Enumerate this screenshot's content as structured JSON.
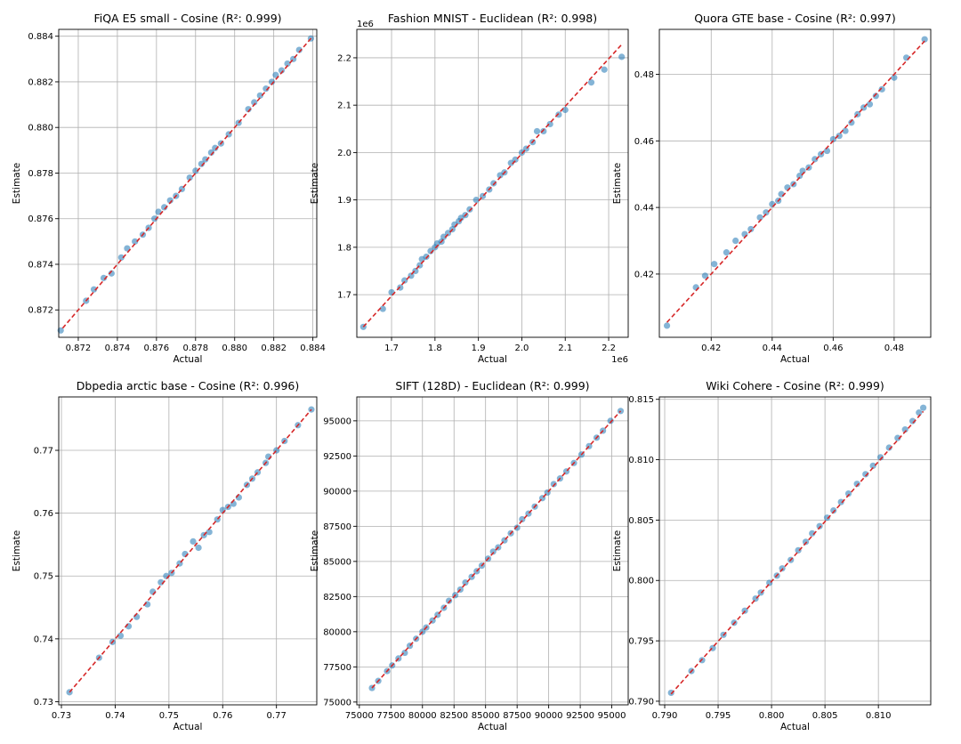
{
  "chart_data": [
    {
      "type": "scatter",
      "title": "FiQA E5 small - Cosine (R²: 0.999)",
      "xlabel": "Actual",
      "ylabel": "Estimate",
      "xlim": [
        0.871,
        0.8842
      ],
      "ylim": [
        0.8708,
        0.8843
      ],
      "xticks": [
        0.872,
        0.874,
        0.876,
        0.878,
        0.88,
        0.882,
        0.884
      ],
      "yticks": [
        0.872,
        0.874,
        0.876,
        0.878,
        0.88,
        0.882,
        0.884
      ],
      "tick_decimals": 3,
      "x_multiplier": "",
      "y_multiplier": "",
      "grid": true,
      "fit_line": [
        [
          0.8712,
          0.8712
        ],
        [
          0.884,
          0.884
        ]
      ],
      "points": [
        [
          0.8711,
          0.8711
        ],
        [
          0.8724,
          0.8724
        ],
        [
          0.8728,
          0.8729
        ],
        [
          0.8733,
          0.8734
        ],
        [
          0.8737,
          0.8736
        ],
        [
          0.8742,
          0.8743
        ],
        [
          0.8745,
          0.8747
        ],
        [
          0.8749,
          0.875
        ],
        [
          0.8753,
          0.8753
        ],
        [
          0.8756,
          0.8756
        ],
        [
          0.8759,
          0.876
        ],
        [
          0.8761,
          0.8763
        ],
        [
          0.8764,
          0.8765
        ],
        [
          0.8767,
          0.8768
        ],
        [
          0.877,
          0.877
        ],
        [
          0.8773,
          0.8773
        ],
        [
          0.8777,
          0.8778
        ],
        [
          0.878,
          0.8781
        ],
        [
          0.8783,
          0.8784
        ],
        [
          0.8785,
          0.8786
        ],
        [
          0.8788,
          0.8789
        ],
        [
          0.879,
          0.8791
        ],
        [
          0.8793,
          0.8793
        ],
        [
          0.8797,
          0.8797
        ],
        [
          0.8802,
          0.8802
        ],
        [
          0.8807,
          0.8808
        ],
        [
          0.881,
          0.8811
        ],
        [
          0.8813,
          0.8814
        ],
        [
          0.8816,
          0.8817
        ],
        [
          0.8819,
          0.882
        ],
        [
          0.8821,
          0.8823
        ],
        [
          0.8824,
          0.8825
        ],
        [
          0.8827,
          0.8828
        ],
        [
          0.883,
          0.883
        ],
        [
          0.8833,
          0.8834
        ],
        [
          0.8839,
          0.8839
        ]
      ]
    },
    {
      "type": "scatter",
      "title": "Fashion MNIST - Euclidean (R²: 0.998)",
      "xlabel": "Actual",
      "ylabel": "Estimate",
      "xlim": [
        1620000,
        2245000
      ],
      "ylim": [
        1610000,
        2260000
      ],
      "xticks": [
        1700000,
        1800000,
        1900000,
        2000000,
        2100000,
        2200000
      ],
      "yticks": [
        1700000,
        1800000,
        1900000,
        2000000,
        2100000,
        2200000
      ],
      "xtick_labels": [
        "1.7",
        "1.8",
        "1.9",
        "2.0",
        "2.1",
        "2.2"
      ],
      "ytick_labels": [
        "1.7",
        "1.8",
        "1.9",
        "2.0",
        "2.1",
        "2.2"
      ],
      "x_multiplier": "1e6",
      "y_multiplier": "1e6",
      "grid": true,
      "fit_line": [
        [
          1635000,
          1632000
        ],
        [
          2230000,
          2228000
        ]
      ],
      "points": [
        [
          1635000,
          1632000
        ],
        [
          1680000,
          1670000
        ],
        [
          1700000,
          1705000
        ],
        [
          1720000,
          1715000
        ],
        [
          1730000,
          1730000
        ],
        [
          1745000,
          1740000
        ],
        [
          1755000,
          1750000
        ],
        [
          1765000,
          1762000
        ],
        [
          1770000,
          1775000
        ],
        [
          1780000,
          1780000
        ],
        [
          1790000,
          1792000
        ],
        [
          1800000,
          1800000
        ],
        [
          1805000,
          1808000
        ],
        [
          1815000,
          1812000
        ],
        [
          1820000,
          1822000
        ],
        [
          1830000,
          1830000
        ],
        [
          1840000,
          1838000
        ],
        [
          1845000,
          1848000
        ],
        [
          1855000,
          1855000
        ],
        [
          1860000,
          1862000
        ],
        [
          1870000,
          1868000
        ],
        [
          1880000,
          1880000
        ],
        [
          1895000,
          1900000
        ],
        [
          1910000,
          1908000
        ],
        [
          1925000,
          1922000
        ],
        [
          1935000,
          1935000
        ],
        [
          1950000,
          1952000
        ],
        [
          1960000,
          1958000
        ],
        [
          1975000,
          1978000
        ],
        [
          1985000,
          1985000
        ],
        [
          2000000,
          2000000
        ],
        [
          2010000,
          2008000
        ],
        [
          2025000,
          2022000
        ],
        [
          2035000,
          2045000
        ],
        [
          2050000,
          2045000
        ],
        [
          2065000,
          2060000
        ],
        [
          2085000,
          2080000
        ],
        [
          2100000,
          2090000
        ],
        [
          2160000,
          2148000
        ],
        [
          2190000,
          2175000
        ],
        [
          2230000,
          2202000
        ]
      ]
    },
    {
      "type": "scatter",
      "title": "Quora GTE base - Cosine (R²: 0.997)",
      "xlabel": "Actual",
      "ylabel": "Estimate",
      "xlim": [
        0.403,
        0.492
      ],
      "ylim": [
        0.401,
        0.4935
      ],
      "xticks": [
        0.42,
        0.44,
        0.46,
        0.48
      ],
      "yticks": [
        0.42,
        0.44,
        0.46,
        0.48
      ],
      "tick_decimals": 2,
      "x_multiplier": "",
      "y_multiplier": "",
      "grid": true,
      "fit_line": [
        [
          0.4055,
          0.4055
        ],
        [
          0.49,
          0.49
        ]
      ],
      "points": [
        [
          0.4055,
          0.4045
        ],
        [
          0.415,
          0.416
        ],
        [
          0.418,
          0.4195
        ],
        [
          0.421,
          0.423
        ],
        [
          0.425,
          0.4265
        ],
        [
          0.428,
          0.43
        ],
        [
          0.431,
          0.432
        ],
        [
          0.433,
          0.4335
        ],
        [
          0.436,
          0.437
        ],
        [
          0.438,
          0.4385
        ],
        [
          0.44,
          0.441
        ],
        [
          0.442,
          0.442
        ],
        [
          0.443,
          0.444
        ],
        [
          0.445,
          0.446
        ],
        [
          0.447,
          0.447
        ],
        [
          0.449,
          0.4495
        ],
        [
          0.45,
          0.451
        ],
        [
          0.452,
          0.452
        ],
        [
          0.454,
          0.4545
        ],
        [
          0.456,
          0.456
        ],
        [
          0.458,
          0.457
        ],
        [
          0.46,
          0.4605
        ],
        [
          0.462,
          0.4615
        ],
        [
          0.464,
          0.463
        ],
        [
          0.466,
          0.4655
        ],
        [
          0.468,
          0.468
        ],
        [
          0.47,
          0.47
        ],
        [
          0.472,
          0.471
        ],
        [
          0.474,
          0.4735
        ],
        [
          0.476,
          0.4755
        ],
        [
          0.48,
          0.479
        ],
        [
          0.484,
          0.485
        ],
        [
          0.49,
          0.4905
        ]
      ]
    },
    {
      "type": "scatter",
      "title": "Dbpedia arctic base - Cosine (R²: 0.996)",
      "xlabel": "Actual",
      "ylabel": "Estimate",
      "xlim": [
        0.7295,
        0.7775
      ],
      "ylim": [
        0.7295,
        0.7785
      ],
      "xticks": [
        0.73,
        0.74,
        0.75,
        0.76,
        0.77
      ],
      "yticks": [
        0.73,
        0.74,
        0.75,
        0.76,
        0.77
      ],
      "tick_decimals": 2,
      "x_multiplier": "",
      "y_multiplier": "",
      "grid": true,
      "fit_line": [
        [
          0.7315,
          0.7315
        ],
        [
          0.7765,
          0.7765
        ]
      ],
      "points": [
        [
          0.7315,
          0.7315
        ],
        [
          0.737,
          0.737
        ],
        [
          0.7395,
          0.7395
        ],
        [
          0.741,
          0.7405
        ],
        [
          0.7425,
          0.742
        ],
        [
          0.744,
          0.7435
        ],
        [
          0.746,
          0.7455
        ],
        [
          0.747,
          0.7475
        ],
        [
          0.7485,
          0.749
        ],
        [
          0.7495,
          0.75
        ],
        [
          0.7505,
          0.7505
        ],
        [
          0.752,
          0.752
        ],
        [
          0.753,
          0.7535
        ],
        [
          0.7545,
          0.7555
        ],
        [
          0.7555,
          0.7545
        ],
        [
          0.7565,
          0.7565
        ],
        [
          0.7575,
          0.757
        ],
        [
          0.759,
          0.759
        ],
        [
          0.76,
          0.7605
        ],
        [
          0.761,
          0.761
        ],
        [
          0.762,
          0.7615
        ],
        [
          0.763,
          0.7625
        ],
        [
          0.7645,
          0.7645
        ],
        [
          0.7655,
          0.7655
        ],
        [
          0.7665,
          0.7665
        ],
        [
          0.768,
          0.768
        ],
        [
          0.7685,
          0.769
        ],
        [
          0.77,
          0.77
        ],
        [
          0.7715,
          0.7715
        ],
        [
          0.774,
          0.774
        ],
        [
          0.7765,
          0.7765
        ]
      ]
    },
    {
      "type": "scatter",
      "title": "SIFT (128D) - Euclidean (R²: 0.999)",
      "xlabel": "Actual",
      "ylabel": "Estimate",
      "xlim": [
        74800,
        96300
      ],
      "ylim": [
        74800,
        96700
      ],
      "xticks": [
        75000,
        77500,
        80000,
        82500,
        85000,
        87500,
        90000,
        92500,
        95000
      ],
      "yticks": [
        75000,
        77500,
        80000,
        82500,
        85000,
        87500,
        90000,
        92500,
        95000
      ],
      "tick_decimals": 0,
      "x_multiplier": "",
      "y_multiplier": "",
      "grid": true,
      "fit_line": [
        [
          76000,
          76000
        ],
        [
          95700,
          95700
        ]
      ],
      "points": [
        [
          76000,
          76000
        ],
        [
          76500,
          76500
        ],
        [
          77200,
          77200
        ],
        [
          77600,
          77600
        ],
        [
          78100,
          78100
        ],
        [
          78600,
          78500
        ],
        [
          79000,
          79000
        ],
        [
          79500,
          79500
        ],
        [
          80000,
          80000
        ],
        [
          80300,
          80300
        ],
        [
          80800,
          80800
        ],
        [
          81200,
          81200
        ],
        [
          81700,
          81700
        ],
        [
          82100,
          82200
        ],
        [
          82600,
          82600
        ],
        [
          83000,
          83000
        ],
        [
          83400,
          83500
        ],
        [
          83900,
          83900
        ],
        [
          84300,
          84300
        ],
        [
          84700,
          84700
        ],
        [
          85200,
          85200
        ],
        [
          85600,
          85700
        ],
        [
          86000,
          86000
        ],
        [
          86500,
          86500
        ],
        [
          87000,
          87000
        ],
        [
          87500,
          87400
        ],
        [
          87900,
          88000
        ],
        [
          88400,
          88400
        ],
        [
          88900,
          88900
        ],
        [
          89500,
          89500
        ],
        [
          89900,
          89900
        ],
        [
          90400,
          90500
        ],
        [
          90900,
          90900
        ],
        [
          91400,
          91400
        ],
        [
          92000,
          92000
        ],
        [
          92600,
          92600
        ],
        [
          93200,
          93200
        ],
        [
          93800,
          93800
        ],
        [
          94300,
          94300
        ],
        [
          94900,
          95000
        ],
        [
          95700,
          95700
        ]
      ]
    },
    {
      "type": "scatter",
      "title": "Wiki Cohere - Cosine (R²: 0.999)",
      "xlabel": "Actual",
      "ylabel": "Estimate",
      "xlim": [
        0.7895,
        0.8149
      ],
      "ylim": [
        0.7897,
        0.8152
      ],
      "xticks": [
        0.79,
        0.795,
        0.8,
        0.805,
        0.81
      ],
      "yticks": [
        0.79,
        0.795,
        0.8,
        0.805,
        0.81,
        0.815
      ],
      "tick_decimals": 3,
      "x_multiplier": "",
      "y_multiplier": "",
      "grid": true,
      "fit_line": [
        [
          0.7906,
          0.7906
        ],
        [
          0.8142,
          0.814
        ]
      ],
      "points": [
        [
          0.7906,
          0.7907
        ],
        [
          0.7925,
          0.7925
        ],
        [
          0.7935,
          0.7934
        ],
        [
          0.7945,
          0.7944
        ],
        [
          0.7955,
          0.7955
        ],
        [
          0.7965,
          0.7965
        ],
        [
          0.7975,
          0.7975
        ],
        [
          0.7985,
          0.7985
        ],
        [
          0.799,
          0.799
        ],
        [
          0.7998,
          0.7998
        ],
        [
          0.8005,
          0.8004
        ],
        [
          0.801,
          0.801
        ],
        [
          0.8018,
          0.8017
        ],
        [
          0.8025,
          0.8025
        ],
        [
          0.8032,
          0.8032
        ],
        [
          0.8038,
          0.8039
        ],
        [
          0.8045,
          0.8045
        ],
        [
          0.8052,
          0.8052
        ],
        [
          0.8058,
          0.8058
        ],
        [
          0.8065,
          0.8065
        ],
        [
          0.8072,
          0.8072
        ],
        [
          0.808,
          0.808
        ],
        [
          0.8088,
          0.8088
        ],
        [
          0.8095,
          0.8095
        ],
        [
          0.8102,
          0.8102
        ],
        [
          0.811,
          0.811
        ],
        [
          0.8118,
          0.8118
        ],
        [
          0.8125,
          0.8125
        ],
        [
          0.8132,
          0.8132
        ],
        [
          0.8138,
          0.8139
        ],
        [
          0.8142,
          0.8143
        ]
      ]
    }
  ]
}
